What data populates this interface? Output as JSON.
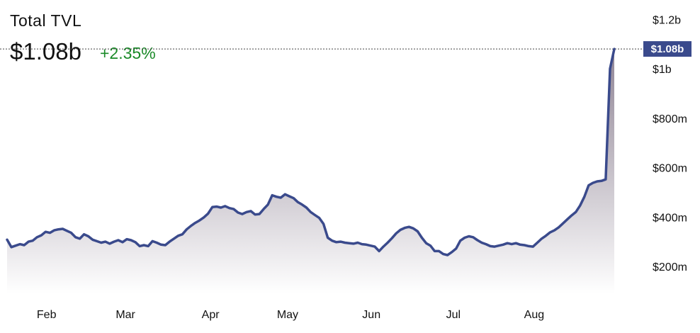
{
  "header": {
    "title": "Total TVL",
    "value": "$1.08b",
    "change": "+2.35%"
  },
  "colors": {
    "line": "#3a4a8c",
    "area_top": "#8a7f90",
    "area_bottom": "#ffffff",
    "change_positive": "#1a8a28",
    "badge_bg": "#3a4a8c"
  },
  "chart_data": {
    "type": "area",
    "title": "Total TVL",
    "xlabel": "",
    "ylabel": "",
    "grid": false,
    "x_ticks": [
      "Feb",
      "Mar",
      "Apr",
      "May",
      "Jun",
      "Jul",
      "Aug"
    ],
    "y_ticks": [
      "$200m",
      "$400m",
      "$600m",
      "$800m",
      "$1b",
      "$1.2b"
    ],
    "y_tick_values": [
      200,
      400,
      600,
      800,
      1000,
      1200
    ],
    "ylim": [
      0,
      1250
    ],
    "units": "millions USD",
    "current_value_label": "$1.08b",
    "current_value": 1080,
    "series": [
      {
        "values": [
          308,
          278,
          284,
          290,
          286,
          300,
          304,
          318,
          326,
          340,
          336,
          346,
          350,
          352,
          344,
          336,
          318,
          312,
          330,
          322,
          308,
          302,
          296,
          300,
          292,
          300,
          306,
          298,
          310,
          306,
          298,
          282,
          286,
          282,
          302,
          296,
          288,
          286,
          300,
          312,
          324,
          330,
          350,
          364,
          376,
          386,
          398,
          414,
          440,
          442,
          438,
          444,
          436,
          432,
          418,
          412,
          420,
          424,
          410,
          412,
          432,
          450,
          488,
          482,
          478,
          492,
          484,
          476,
          460,
          450,
          438,
          420,
          408,
          396,
          372,
          316,
          304,
          298,
          300,
          296,
          294,
          292,
          296,
          290,
          288,
          284,
          280,
          262,
          280,
          296,
          314,
          334,
          348,
          356,
          360,
          354,
          342,
          316,
          294,
          284,
          262,
          262,
          250,
          246,
          258,
          272,
          304,
          316,
          322,
          318,
          306,
          296,
          290,
          282,
          280,
          284,
          288,
          294,
          290,
          294,
          288,
          286,
          282,
          280,
          296,
          312,
          324,
          338,
          346,
          358,
          374,
          390,
          406,
          420,
          446,
          482,
          528,
          538,
          544,
          546,
          552,
          1000,
          1080
        ]
      }
    ]
  }
}
